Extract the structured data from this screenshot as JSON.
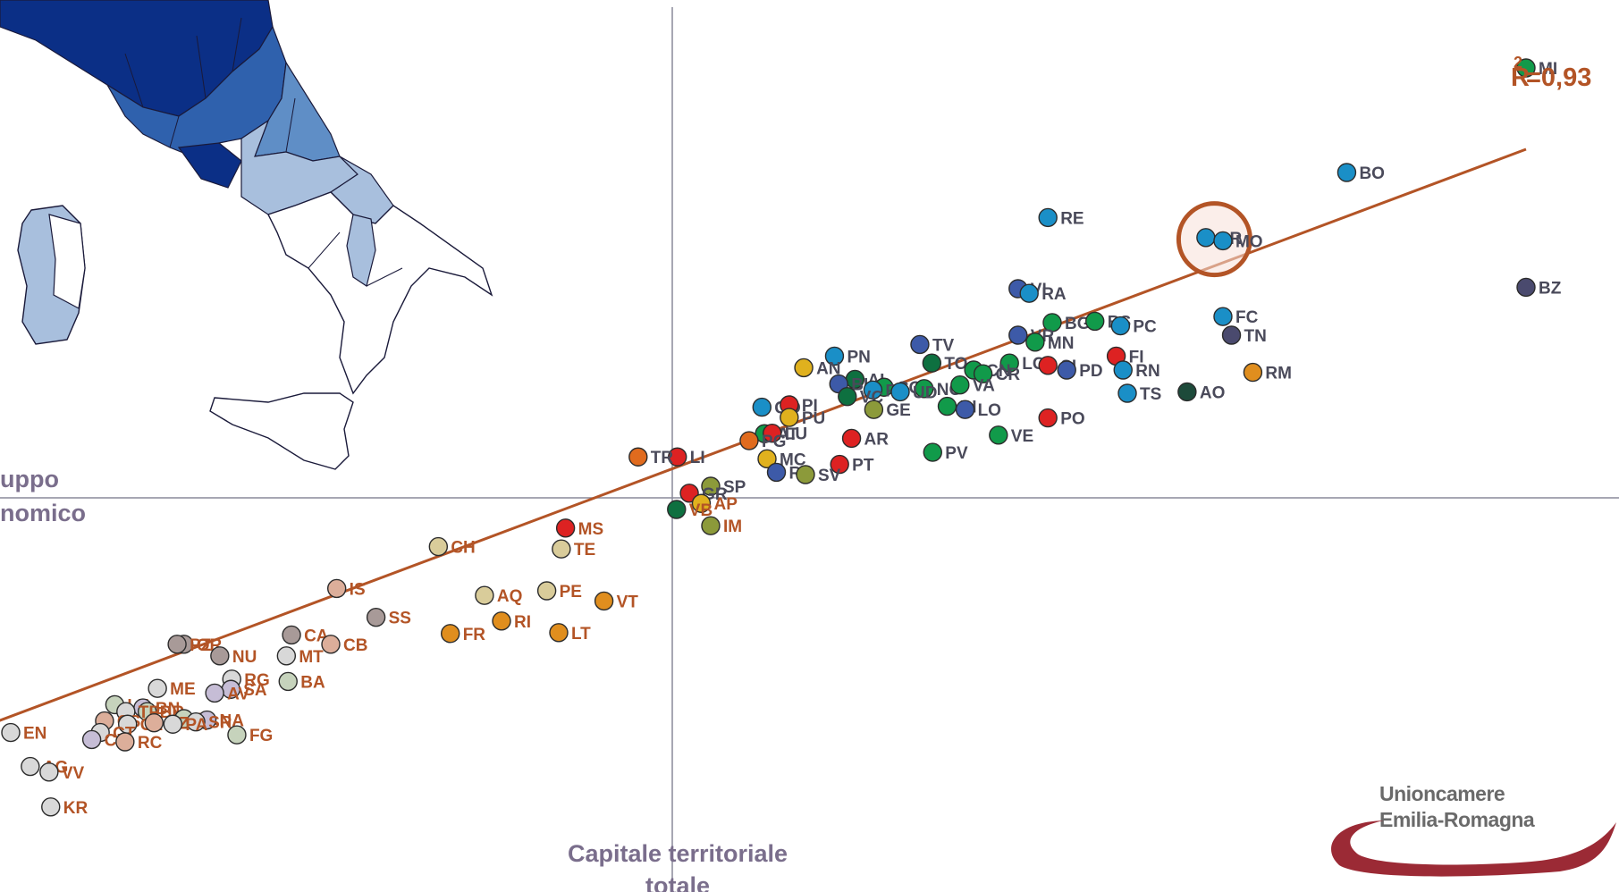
{
  "r_squared_label": "R",
  "r_squared_sup": "2",
  "r_squared_value": "=0,93",
  "y_axis_title_line1": "uppo",
  "y_axis_title_line2": "nomico",
  "x_axis_title_line1": "Capitale territoriale",
  "x_axis_title_line2": "totale",
  "logo_line1": "Unioncamere",
  "logo_line2": "Emilia-Romagna",
  "highlight_colors": {
    "trendline": "#b35426",
    "highlight_ring": "#b35426",
    "axes": "#8a8a9a"
  },
  "map_colors": [
    "#0b2f86",
    "#2f61ad",
    "#5f8ec6",
    "#a8bfdd",
    "#ffffff"
  ],
  "chart_data": {
    "type": "scatter",
    "xlabel": "Capitale territoriale totale",
    "ylabel": "uppo nomico",
    "xlim": [
      -1.0,
      1.0
    ],
    "ylim": [
      -0.83,
      1.0
    ],
    "grid": false,
    "annotation": "R2 =0,93",
    "highlight_points": [
      "PR",
      "MO"
    ],
    "points": [
      {
        "label": "MI",
        "x": 1.0,
        "y": 0.925,
        "color": "#119a4a"
      },
      {
        "label": "BO",
        "x": 0.79,
        "y": 0.7,
        "color": "#1a8fc7"
      },
      {
        "label": "RE",
        "x": 0.44,
        "y": 0.603,
        "color": "#1a8fc7"
      },
      {
        "label": "PR",
        "x": 0.625,
        "y": 0.56,
        "color": "#1a8fc7"
      },
      {
        "label": "MO",
        "x": 0.645,
        "y": 0.553,
        "color": "#1a8fc7"
      },
      {
        "label": "BZ",
        "x": 1.0,
        "y": 0.453,
        "color": "#4a4a6e"
      },
      {
        "label": "VI",
        "x": 0.405,
        "y": 0.45,
        "color": "#3d5aa8"
      },
      {
        "label": "RA",
        "x": 0.418,
        "y": 0.44,
        "color": "#1a8fc7"
      },
      {
        "label": "FC",
        "x": 0.645,
        "y": 0.39,
        "color": "#1a8fc7"
      },
      {
        "label": "BG",
        "x": 0.445,
        "y": 0.377,
        "color": "#119a4a"
      },
      {
        "label": "BS",
        "x": 0.495,
        "y": 0.38,
        "color": "#119a4a"
      },
      {
        "label": "PC",
        "x": 0.525,
        "y": 0.37,
        "color": "#1a8fc7"
      },
      {
        "label": "TN",
        "x": 0.655,
        "y": 0.35,
        "color": "#4a4a6e"
      },
      {
        "label": "VR",
        "x": 0.405,
        "y": 0.35,
        "color": "#3d5aa8"
      },
      {
        "label": "MN",
        "x": 0.425,
        "y": 0.335,
        "color": "#119a4a"
      },
      {
        "label": "TV",
        "x": 0.29,
        "y": 0.33,
        "color": "#3d5aa8"
      },
      {
        "label": "PN",
        "x": 0.19,
        "y": 0.305,
        "color": "#1a8fc7"
      },
      {
        "label": "FI",
        "x": 0.52,
        "y": 0.305,
        "color": "#dd2222"
      },
      {
        "label": "LC",
        "x": 0.395,
        "y": 0.29,
        "color": "#119a4a"
      },
      {
        "label": "SI",
        "x": 0.44,
        "y": 0.285,
        "color": "#dd2222"
      },
      {
        "label": "PD",
        "x": 0.462,
        "y": 0.275,
        "color": "#3d5aa8"
      },
      {
        "label": "RN",
        "x": 0.528,
        "y": 0.275,
        "color": "#1a8fc7"
      },
      {
        "label": "RM",
        "x": 0.68,
        "y": 0.27,
        "color": "#e08e1e"
      },
      {
        "label": "TO",
        "x": 0.304,
        "y": 0.29,
        "color": "#0e7040"
      },
      {
        "label": "CN",
        "x": 0.353,
        "y": 0.275,
        "color": "#119a4a"
      },
      {
        "label": "CR",
        "x": 0.364,
        "y": 0.267,
        "color": "#119a4a"
      },
      {
        "label": "AN",
        "x": 0.154,
        "y": 0.28,
        "color": "#e0b11e"
      },
      {
        "label": "AL",
        "x": 0.214,
        "y": 0.255,
        "color": "#0e7040"
      },
      {
        "label": "BI",
        "x": 0.195,
        "y": 0.245,
        "color": "#3d5aa8"
      },
      {
        "label": "CO",
        "x": 0.248,
        "y": 0.238,
        "color": "#119a4a"
      },
      {
        "label": "FE",
        "x": 0.235,
        "y": 0.232,
        "color": "#1a8fc7"
      },
      {
        "label": "NO",
        "x": 0.295,
        "y": 0.235,
        "color": "#119a4a"
      },
      {
        "label": "VA",
        "x": 0.337,
        "y": 0.243,
        "color": "#119a4a"
      },
      {
        "label": "UD",
        "x": 0.267,
        "y": 0.228,
        "color": "#1a8fc7"
      },
      {
        "label": "VC",
        "x": 0.205,
        "y": 0.218,
        "color": "#0e7040"
      },
      {
        "label": "TS",
        "x": 0.533,
        "y": 0.225,
        "color": "#1a8fc7"
      },
      {
        "label": "AO",
        "x": 0.603,
        "y": 0.228,
        "color": "#1d4a3a"
      },
      {
        "label": "GO",
        "x": 0.105,
        "y": 0.195,
        "color": "#1a8fc7"
      },
      {
        "label": "PI",
        "x": 0.137,
        "y": 0.2,
        "color": "#dd2222"
      },
      {
        "label": "GE",
        "x": 0.236,
        "y": 0.19,
        "color": "#8c9a3a"
      },
      {
        "label": "BI",
        "x": 0.322,
        "y": 0.197,
        "color": "#119a4a"
      },
      {
        "label": "LO",
        "x": 0.343,
        "y": 0.19,
        "color": "#3d5aa8"
      },
      {
        "label": "PU",
        "x": 0.137,
        "y": 0.173,
        "color": "#e0b11e"
      },
      {
        "label": "PO",
        "x": 0.44,
        "y": 0.172,
        "color": "#dd2222"
      },
      {
        "label": "AT",
        "x": 0.108,
        "y": 0.138,
        "color": "#119a4a"
      },
      {
        "label": "LU",
        "x": 0.117,
        "y": 0.139,
        "color": "#dd2222"
      },
      {
        "label": "PG",
        "x": 0.09,
        "y": 0.123,
        "color": "#e06b1e"
      },
      {
        "label": "VE",
        "x": 0.382,
        "y": 0.135,
        "color": "#119a4a"
      },
      {
        "label": "AR",
        "x": 0.21,
        "y": 0.128,
        "color": "#dd2222"
      },
      {
        "label": "PV",
        "x": 0.305,
        "y": 0.098,
        "color": "#119a4a"
      },
      {
        "label": "LI",
        "x": 0.006,
        "y": 0.088,
        "color": "#dd2222"
      },
      {
        "label": "TR",
        "x": -0.04,
        "y": 0.088,
        "color": "#e06b1e"
      },
      {
        "label": "MC",
        "x": 0.111,
        "y": 0.084,
        "color": "#e0b11e"
      },
      {
        "label": "PT",
        "x": 0.196,
        "y": 0.072,
        "color": "#dd2222"
      },
      {
        "label": "RO",
        "x": 0.122,
        "y": 0.055,
        "color": "#3d5aa8"
      },
      {
        "label": "SV",
        "x": 0.156,
        "y": 0.05,
        "color": "#8c9a3a"
      },
      {
        "label": "SP",
        "x": 0.045,
        "y": 0.025,
        "color": "#8c9a3a"
      },
      {
        "label": "GR",
        "x": 0.02,
        "y": 0.01,
        "color": "#dd2222"
      },
      {
        "label": "AP",
        "x": 0.034,
        "y": -0.012,
        "color": "#e0b11e"
      },
      {
        "label": "VB",
        "x": 0.005,
        "y": -0.025,
        "color": "#0e7040"
      },
      {
        "label": "IM",
        "x": 0.045,
        "y": -0.06,
        "color": "#8c9a3a"
      },
      {
        "label": "MS",
        "x": -0.125,
        "y": -0.065,
        "color": "#dd2222"
      },
      {
        "label": "TE",
        "x": -0.13,
        "y": -0.11,
        "color": "#d9cc9a"
      },
      {
        "label": "CH",
        "x": -0.274,
        "y": -0.105,
        "color": "#d9cc9a"
      },
      {
        "label": "IS",
        "x": -0.393,
        "y": -0.195,
        "color": "#dcae9a"
      },
      {
        "label": "PE",
        "x": -0.147,
        "y": -0.2,
        "color": "#d9cc9a"
      },
      {
        "label": "VT",
        "x": -0.08,
        "y": -0.222,
        "color": "#e08e1e"
      },
      {
        "label": "AQ",
        "x": -0.22,
        "y": -0.21,
        "color": "#d9cc9a"
      },
      {
        "label": "SS",
        "x": -0.347,
        "y": -0.257,
        "color": "#a89a98"
      },
      {
        "label": "RI",
        "x": -0.2,
        "y": -0.265,
        "color": "#e08e1e"
      },
      {
        "label": "LT",
        "x": -0.133,
        "y": -0.29,
        "color": "#e08e1e"
      },
      {
        "label": "FR",
        "x": -0.26,
        "y": -0.292,
        "color": "#e08e1e"
      },
      {
        "label": "CA",
        "x": -0.446,
        "y": -0.295,
        "color": "#a89a98"
      },
      {
        "label": "CB",
        "x": -0.4,
        "y": -0.315,
        "color": "#dcae9a"
      },
      {
        "label": "OR",
        "x": -0.572,
        "y": -0.315,
        "color": "#a89a98"
      },
      {
        "label": "PZ",
        "x": -0.58,
        "y": -0.315,
        "color": "#a89a98"
      },
      {
        "label": "NU",
        "x": -0.53,
        "y": -0.34,
        "color": "#a89a98"
      },
      {
        "label": "MT",
        "x": -0.452,
        "y": -0.34,
        "color": "#d8d8d8"
      },
      {
        "label": "RG",
        "x": -0.516,
        "y": -0.39,
        "color": "#d8d8d8"
      },
      {
        "label": "BA",
        "x": -0.45,
        "y": -0.395,
        "color": "#c6d3bc"
      },
      {
        "label": "ME",
        "x": -0.603,
        "y": -0.41,
        "color": "#d8d8d8"
      },
      {
        "label": "SA",
        "x": -0.517,
        "y": -0.412,
        "color": "#c6bdd6"
      },
      {
        "label": "AV",
        "x": -0.536,
        "y": -0.42,
        "color": "#c6bdd6"
      },
      {
        "label": "LE",
        "x": -0.653,
        "y": -0.445,
        "color": "#c6d3bc"
      },
      {
        "label": "BN",
        "x": -0.62,
        "y": -0.452,
        "color": "#c6bdd6"
      },
      {
        "label": "BR",
        "x": -0.615,
        "y": -0.46,
        "color": "#c6d3bc"
      },
      {
        "label": "TP",
        "x": -0.64,
        "y": -0.46,
        "color": "#d8d8d8"
      },
      {
        "label": "TA",
        "x": -0.572,
        "y": -0.475,
        "color": "#c6d3bc"
      },
      {
        "label": "NA",
        "x": -0.545,
        "y": -0.478,
        "color": "#c6bdd6"
      },
      {
        "label": "SR",
        "x": -0.558,
        "y": -0.482,
        "color": "#d8d8d8"
      },
      {
        "label": "CS",
        "x": -0.665,
        "y": -0.48,
        "color": "#dcae9a"
      },
      {
        "label": "CL",
        "x": -0.638,
        "y": -0.487,
        "color": "#d8d8d8"
      },
      {
        "label": "CZ",
        "x": -0.607,
        "y": -0.484,
        "color": "#dcae9a"
      },
      {
        "label": "PA",
        "x": -0.585,
        "y": -0.487,
        "color": "#d8d8d8"
      },
      {
        "label": "EN",
        "x": -0.807,
        "y": -0.505,
        "color": "#d8d8d8"
      },
      {
        "label": "CT",
        "x": -0.67,
        "y": -0.505,
        "color": "#d8d8d8"
      },
      {
        "label": "FG",
        "x": -0.51,
        "y": -0.51,
        "color": "#c6d3bc"
      },
      {
        "label": "CE",
        "x": -0.68,
        "y": -0.52,
        "color": "#c6bdd6"
      },
      {
        "label": "RC",
        "x": -0.641,
        "y": -0.525,
        "color": "#dcae9a"
      },
      {
        "label": "AG",
        "x": -0.752,
        "y": -0.578,
        "color": "#d8d8d8"
      },
      {
        "label": "VV",
        "x": -0.73,
        "y": -0.59,
        "color": "#d8d8d8"
      },
      {
        "label": "KR",
        "x": -0.728,
        "y": -0.665,
        "color": "#d8d8d8"
      }
    ],
    "trendline": {
      "x": [
        -1.0,
        1.0
      ],
      "y": [
        -0.625,
        0.75
      ]
    }
  }
}
